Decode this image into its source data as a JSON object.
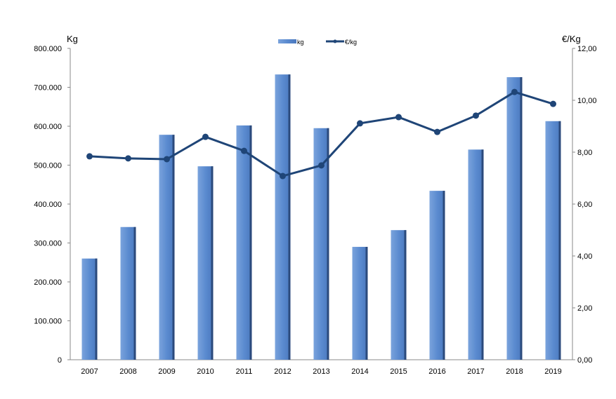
{
  "chart_data": {
    "type": "bar",
    "title": "",
    "categories": [
      "2007",
      "2008",
      "2009",
      "2010",
      "2011",
      "2012",
      "2013",
      "2014",
      "2015",
      "2016",
      "2017",
      "2018",
      "2019"
    ],
    "series": [
      {
        "name": "kg",
        "type": "bar",
        "axis": "left",
        "values": [
          260000,
          341000,
          578000,
          497000,
          602000,
          733000,
          595000,
          290000,
          333000,
          434000,
          540000,
          726000,
          613000
        ]
      },
      {
        "name": "€/kg",
        "type": "line",
        "axis": "right",
        "values": [
          7.84,
          7.76,
          7.73,
          8.59,
          8.05,
          7.08,
          7.49,
          9.11,
          9.35,
          8.78,
          9.41,
          10.32,
          9.86
        ]
      }
    ],
    "ylabel": "Kg",
    "y2label": "€/Kg",
    "ylim": [
      0,
      800000
    ],
    "y2lim": [
      0,
      12
    ],
    "yticks": [
      "0",
      "100.000",
      "200.000",
      "300.000",
      "400.000",
      "500.000",
      "600.000",
      "700.000",
      "800.000"
    ],
    "y2ticks": [
      "0,00",
      "2,00",
      "4,00",
      "6,00",
      "8,00",
      "10,00",
      "12,00"
    ],
    "legend_position": "top-center",
    "grid": false,
    "colors": {
      "bar": "#5b8bd0",
      "bar_edge": "#2b4a7c",
      "line": "#1f4577"
    }
  }
}
